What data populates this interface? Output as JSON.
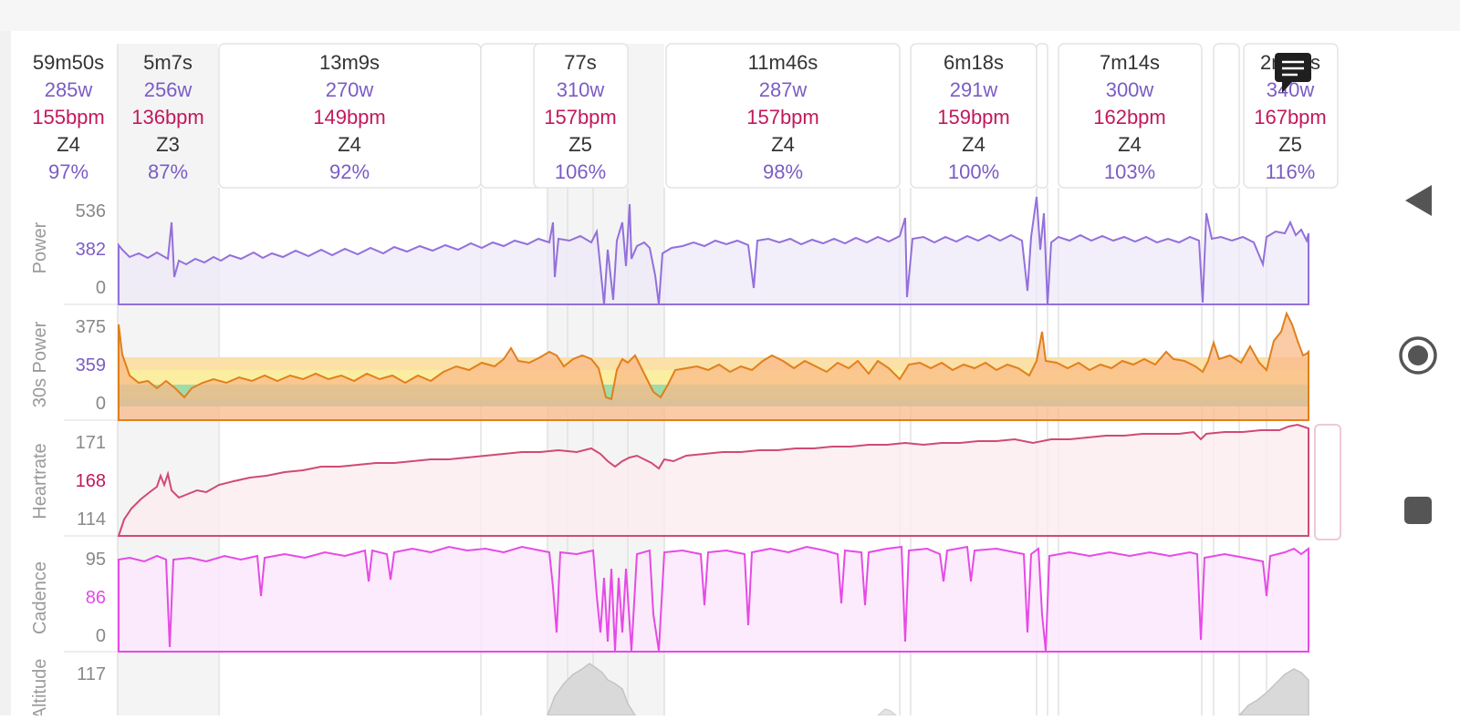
{
  "colors": {
    "power": "#9370db",
    "heartrate": "#c2185b",
    "cadence": "#e64ae6",
    "text_dark": "#333333",
    "text_muted": "#9a9a9a"
  },
  "summary": {
    "time": "59m50s",
    "watts": "285w",
    "bpm": "155bpm",
    "zone": "Z4",
    "pct": "97%"
  },
  "laps": [
    {
      "time": "5m7s",
      "watts": "256w",
      "bpm": "136bpm",
      "zone": "Z3",
      "pct": "87%"
    },
    {
      "time": "13m9s",
      "watts": "270w",
      "bpm": "149bpm",
      "zone": "Z4",
      "pct": "92%"
    },
    {
      "time": "77s",
      "watts": "310w",
      "bpm": "157bpm",
      "zone": "Z5",
      "pct": "106%"
    },
    {
      "time": "11m46s",
      "watts": "287w",
      "bpm": "157bpm",
      "zone": "Z4",
      "pct": "98%"
    },
    {
      "time": "6m18s",
      "watts": "291w",
      "bpm": "159bpm",
      "zone": "Z4",
      "pct": "100%"
    },
    {
      "time": "7m14s",
      "watts": "300w",
      "bpm": "162bpm",
      "zone": "Z4",
      "pct": "103%"
    },
    {
      "time": "2m22s",
      "watts": "340w",
      "bpm": "167bpm",
      "zone": "Z5",
      "pct": "116%"
    }
  ],
  "charts": [
    {
      "title": "Power",
      "top": "536",
      "mid": "382",
      "bottom": "0"
    },
    {
      "title": "30s Power",
      "top": "375",
      "mid": "359",
      "bottom": "0"
    },
    {
      "title": "Heartrate",
      "top": "171",
      "mid": "168",
      "bottom": "114"
    },
    {
      "title": "Cadence",
      "top": "95",
      "mid": "86",
      "bottom": "0"
    },
    {
      "title": "Altitude",
      "top": "117"
    }
  ],
  "icons": {
    "comment": "comment-icon",
    "back": "back-triangle-icon",
    "home": "home-circle-icon",
    "recents": "recents-square-icon"
  }
}
